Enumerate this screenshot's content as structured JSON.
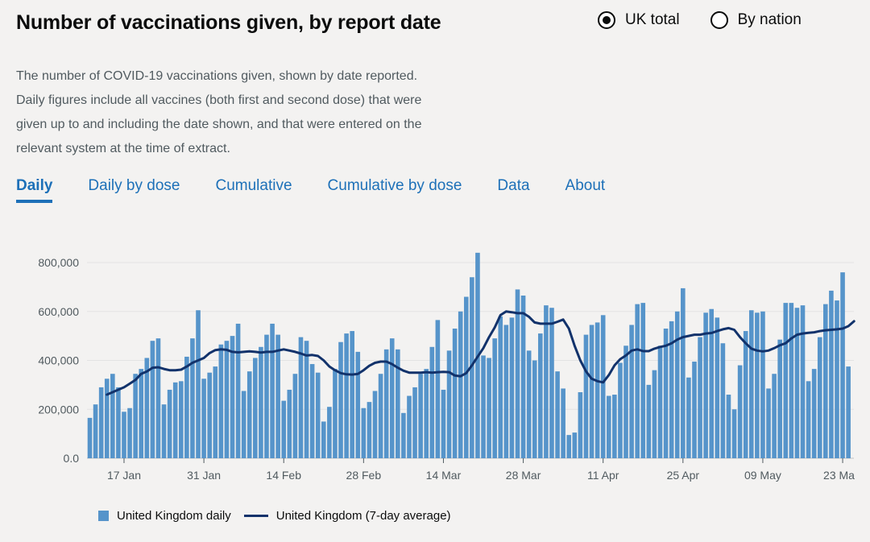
{
  "header": {
    "title": "Number of vaccinations given, by report date",
    "radio_options": [
      {
        "label": "UK total",
        "checked": true
      },
      {
        "label": "By nation",
        "checked": false
      }
    ]
  },
  "description": "The number of COVID-19 vaccinations given, shown by date reported. Daily figures include all vaccines (both first and second dose) that were given up to and including the date shown, and that were entered on the relevant system at the time of extract.",
  "tabs": [
    {
      "label": "Daily",
      "active": true
    },
    {
      "label": "Daily by dose",
      "active": false
    },
    {
      "label": "Cumulative",
      "active": false
    },
    {
      "label": "Cumulative by dose",
      "active": false
    },
    {
      "label": "Data",
      "active": false
    },
    {
      "label": "About",
      "active": false
    }
  ],
  "colors": {
    "bar": "#5694ca",
    "line": "#12326b",
    "tab": "#1d70b8"
  },
  "chart_data": {
    "type": "bar",
    "start_date": "2021-01-11",
    "y_ticks": [
      "0.0",
      "200,000",
      "400,000",
      "600,000",
      "800,000"
    ],
    "y_tick_values": [
      0,
      200000,
      400000,
      600000,
      800000
    ],
    "ylim": [
      0,
      880000
    ],
    "x_ticks": [
      {
        "label": "17 Jan",
        "day": 6
      },
      {
        "label": "31 Jan",
        "day": 20
      },
      {
        "label": "14 Feb",
        "day": 34
      },
      {
        "label": "28 Feb",
        "day": 48
      },
      {
        "label": "14 Mar",
        "day": 62
      },
      {
        "label": "28 Mar",
        "day": 76
      },
      {
        "label": "11 Apr",
        "day": 90
      },
      {
        "label": "25 Apr",
        "day": 104
      },
      {
        "label": "09 May",
        "day": 118
      },
      {
        "label": "23 Ma",
        "day": 132
      }
    ],
    "grid": true,
    "legend_position": "bottom",
    "series": [
      {
        "name": "United Kingdom daily",
        "kind": "bar",
        "values": [
          165000,
          220000,
          290000,
          325000,
          345000,
          290000,
          190000,
          205000,
          345000,
          365000,
          410000,
          480000,
          490000,
          220000,
          280000,
          310000,
          315000,
          415000,
          490000,
          605000,
          325000,
          350000,
          375000,
          465000,
          480000,
          500000,
          550000,
          275000,
          355000,
          410000,
          455000,
          505000,
          550000,
          505000,
          235000,
          280000,
          345000,
          495000,
          480000,
          385000,
          350000,
          150000,
          210000,
          365000,
          475000,
          510000,
          520000,
          435000,
          205000,
          230000,
          275000,
          345000,
          445000,
          490000,
          445000,
          185000,
          255000,
          290000,
          345000,
          365000,
          455000,
          565000,
          280000,
          440000,
          530000,
          600000,
          660000,
          740000,
          840000,
          420000,
          410000,
          490000,
          580000,
          545000,
          575000,
          690000,
          665000,
          440000,
          400000,
          510000,
          625000,
          615000,
          355000,
          285000,
          95000,
          105000,
          270000,
          505000,
          545000,
          555000,
          585000,
          255000,
          260000,
          390000,
          460000,
          545000,
          630000,
          635000,
          300000,
          360000,
          460000,
          530000,
          560000,
          600000,
          695000,
          330000,
          395000,
          495000,
          595000,
          610000,
          575000,
          470000,
          260000,
          200000,
          380000,
          520000,
          605000,
          595000,
          600000,
          285000,
          345000,
          485000,
          635000,
          635000,
          615000,
          625000,
          315000,
          365000,
          495000,
          630000,
          685000,
          645000,
          760000,
          375000
        ]
      },
      {
        "name": "United Kingdom (7-day average)",
        "kind": "line",
        "start_day": 3,
        "values": [
          260000,
          270000,
          280000,
          290000,
          305000,
          320000,
          345000,
          355000,
          370000,
          372000,
          365000,
          360000,
          360000,
          362000,
          375000,
          390000,
          400000,
          410000,
          430000,
          442000,
          445000,
          443000,
          435000,
          433000,
          435000,
          437000,
          435000,
          432000,
          435000,
          435000,
          440000,
          445000,
          440000,
          435000,
          428000,
          420000,
          422000,
          418000,
          400000,
          375000,
          360000,
          348000,
          343000,
          342000,
          345000,
          360000,
          378000,
          390000,
          395000,
          395000,
          385000,
          370000,
          358000,
          350000,
          350000,
          350000,
          352000,
          350000,
          352000,
          353000,
          352000,
          338000,
          335000,
          348000,
          380000,
          415000,
          450000,
          495000,
          535000,
          585000,
          600000,
          597000,
          593000,
          593000,
          578000,
          555000,
          550000,
          550000,
          550000,
          558000,
          567000,
          530000,
          460000,
          400000,
          355000,
          325000,
          315000,
          310000,
          340000,
          380000,
          405000,
          420000,
          440000,
          445000,
          438000,
          438000,
          448000,
          455000,
          460000,
          470000,
          485000,
          495000,
          500000,
          505000,
          505000,
          510000,
          512000,
          520000,
          527000,
          532000,
          525000,
          495000,
          470000,
          448000,
          440000,
          437000,
          440000,
          450000,
          462000,
          470000,
          490000,
          505000,
          510000,
          513000,
          515000,
          520000,
          523000,
          525000,
          527000,
          530000,
          540000,
          560000
        ]
      }
    ]
  }
}
